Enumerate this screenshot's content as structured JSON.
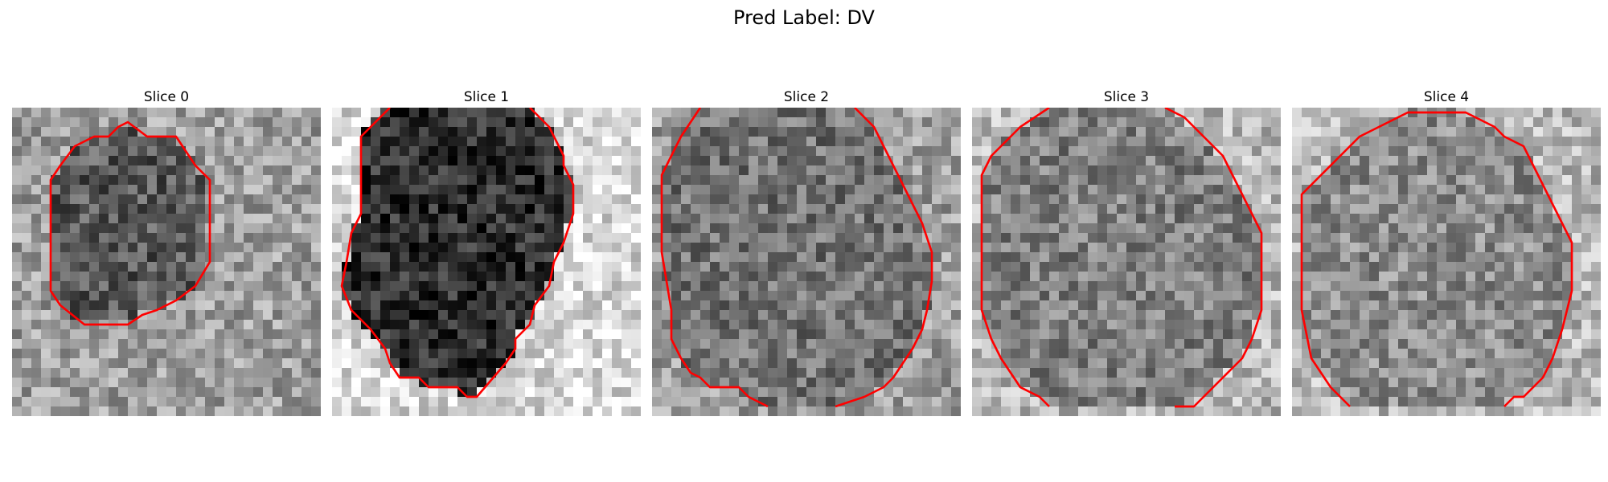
{
  "figure": {
    "title": "Pred Label: DV"
  },
  "colors": {
    "contour": "#ff0000"
  },
  "grid_size": 32,
  "panels": [
    {
      "title": "Slice 0",
      "contour": [
        [
          11,
          2
        ],
        [
          12,
          1.5
        ],
        [
          14,
          3
        ],
        [
          17,
          3
        ],
        [
          19,
          6
        ],
        [
          20.5,
          7.5
        ],
        [
          20.5,
          16
        ],
        [
          19,
          18.5
        ],
        [
          17,
          20
        ],
        [
          15,
          21
        ],
        [
          13.5,
          21.5
        ],
        [
          12,
          22.5
        ],
        [
          7.5,
          22.5
        ],
        [
          5,
          20.5
        ],
        [
          4,
          19
        ],
        [
          4,
          7.5
        ],
        [
          5,
          6
        ],
        [
          6.5,
          4
        ],
        [
          8.5,
          3
        ],
        [
          10,
          3
        ]
      ],
      "open": false
    },
    {
      "title": "Slice 1",
      "contours": [
        [
          [
            6,
            0
          ],
          [
            3,
            3
          ],
          [
            3,
            11
          ],
          [
            2,
            13
          ],
          [
            1.5,
            16
          ],
          [
            1,
            18.5
          ],
          [
            2,
            21
          ],
          [
            4,
            23
          ],
          [
            5.5,
            25
          ],
          [
            6,
            26.5
          ],
          [
            7,
            28
          ],
          [
            9,
            28
          ],
          [
            10,
            29
          ],
          [
            13,
            29
          ],
          [
            14,
            30
          ],
          [
            15,
            30
          ],
          [
            18,
            26.5
          ],
          [
            19,
            25
          ],
          [
            19,
            24
          ],
          [
            20.5,
            22.5
          ],
          [
            21,
            20.5
          ],
          [
            22.5,
            18.5
          ],
          [
            23,
            16
          ],
          [
            24,
            14
          ],
          [
            25,
            11
          ],
          [
            25,
            8
          ],
          [
            24,
            6
          ],
          [
            24,
            5
          ],
          [
            22.5,
            2
          ],
          [
            21.5,
            1
          ],
          [
            20.5,
            0
          ]
        ]
      ]
    },
    {
      "title": "Slice 2",
      "contours": [
        [
          [
            5,
            0
          ],
          [
            3,
            3
          ],
          [
            2,
            5
          ],
          [
            1,
            7
          ],
          [
            1,
            15
          ],
          [
            2,
            21
          ],
          [
            2,
            24
          ],
          [
            3,
            26
          ],
          [
            4,
            27.5
          ],
          [
            5,
            28
          ],
          [
            6,
            29
          ],
          [
            9,
            29
          ],
          [
            10,
            30
          ],
          [
            12,
            31
          ]
        ],
        [
          [
            21,
            0
          ],
          [
            23,
            2
          ],
          [
            24,
            4
          ],
          [
            25,
            6
          ],
          [
            26,
            8
          ],
          [
            27,
            10
          ],
          [
            28,
            12
          ],
          [
            29,
            15
          ],
          [
            29,
            18
          ],
          [
            28.5,
            21
          ],
          [
            28,
            23
          ],
          [
            27,
            25
          ],
          [
            26,
            26.5
          ],
          [
            25,
            28
          ],
          [
            24,
            29
          ],
          [
            22,
            30
          ],
          [
            19,
            31
          ]
        ]
      ]
    },
    {
      "title": "Slice 3",
      "contours": [
        [
          [
            8,
            0
          ],
          [
            5,
            2
          ],
          [
            3,
            4
          ],
          [
            2,
            5
          ],
          [
            1,
            7
          ],
          [
            1,
            21
          ],
          [
            2,
            24
          ],
          [
            3,
            26
          ],
          [
            4,
            27.5
          ],
          [
            5,
            29
          ],
          [
            7,
            30
          ],
          [
            8,
            31
          ]
        ],
        [
          [
            20,
            0
          ],
          [
            22,
            1
          ],
          [
            24,
            3
          ],
          [
            26,
            5
          ],
          [
            27,
            7
          ],
          [
            28,
            9
          ],
          [
            29,
            11
          ],
          [
            30,
            13
          ],
          [
            30,
            21
          ],
          [
            29,
            24
          ],
          [
            28,
            26
          ],
          [
            27,
            27
          ],
          [
            25,
            29
          ],
          [
            23,
            31
          ],
          [
            21,
            31
          ]
        ]
      ]
    },
    {
      "title": "Slice 4",
      "contours": [
        [
          [
            6,
            31
          ],
          [
            4,
            29
          ],
          [
            3,
            27.5
          ],
          [
            2,
            26
          ],
          [
            1,
            21
          ],
          [
            1,
            9
          ],
          [
            3,
            7
          ],
          [
            5,
            5
          ],
          [
            7,
            3
          ],
          [
            9,
            2
          ],
          [
            11,
            1
          ],
          [
            12,
            0.5
          ],
          [
            18,
            0.5
          ],
          [
            19,
            1
          ],
          [
            21,
            2
          ],
          [
            22,
            3
          ],
          [
            24,
            4
          ],
          [
            25,
            6
          ],
          [
            26,
            8
          ],
          [
            27,
            10
          ],
          [
            28,
            12
          ],
          [
            29,
            14
          ],
          [
            29,
            19
          ],
          [
            28,
            23
          ],
          [
            27,
            26
          ],
          [
            26,
            28
          ],
          [
            25,
            29
          ],
          [
            24,
            30
          ],
          [
            23,
            30
          ],
          [
            22,
            31
          ]
        ]
      ]
    }
  ]
}
